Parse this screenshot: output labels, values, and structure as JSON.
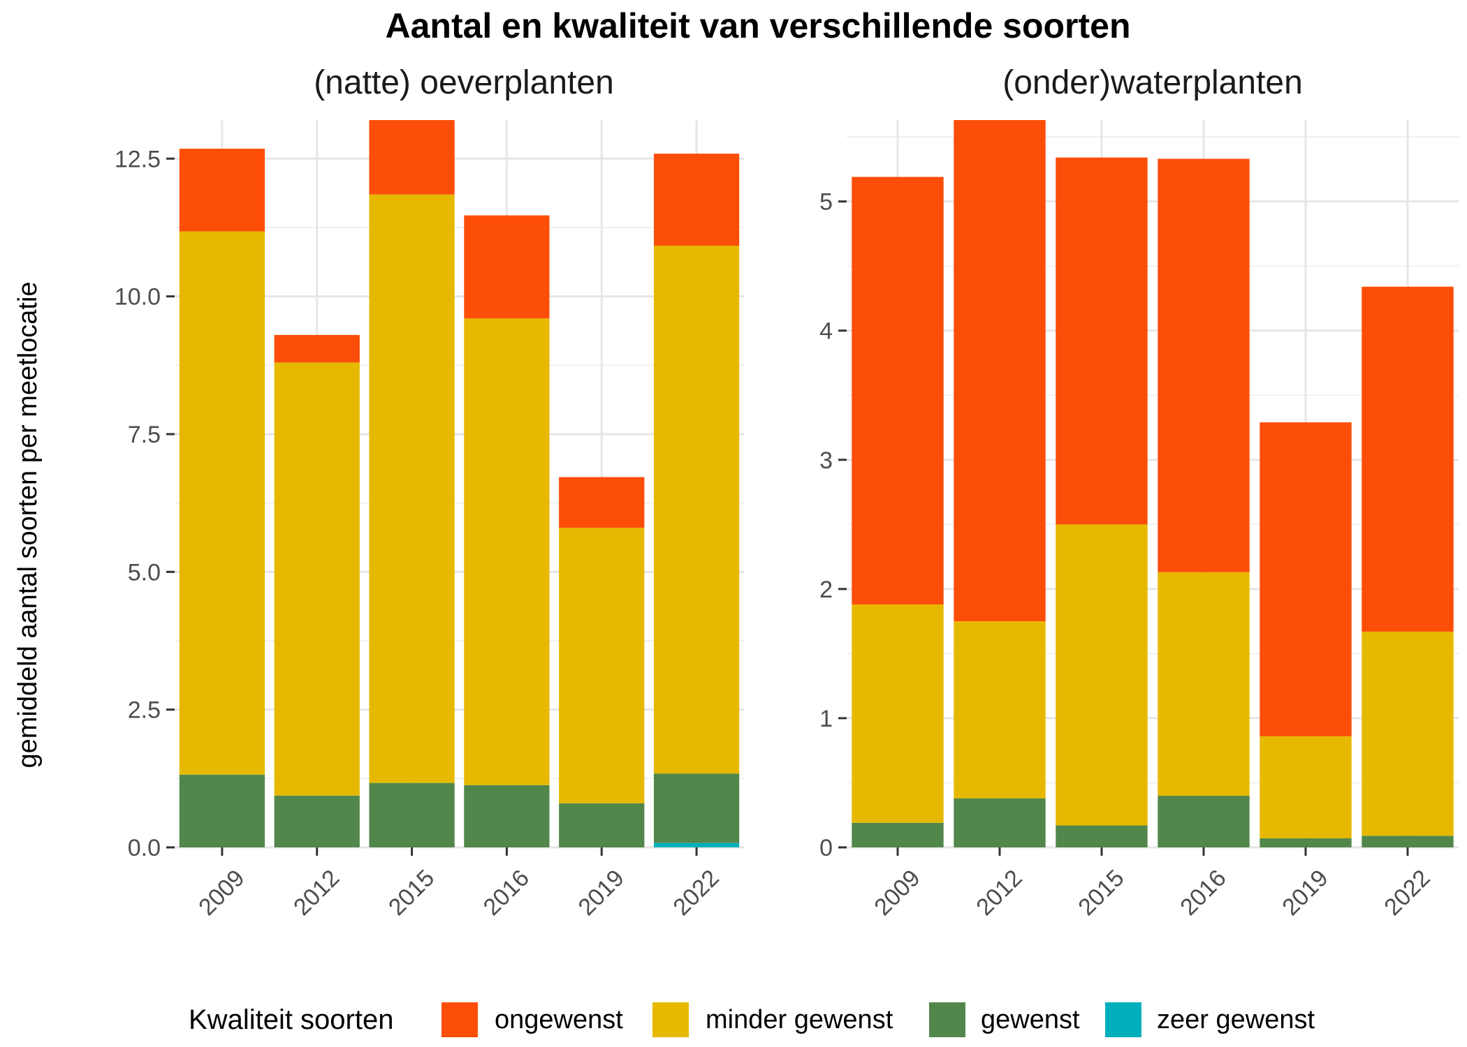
{
  "title": "Aantal en kwaliteit van verschillende soorten",
  "ylabel": "gemiddeld aantal soorten per meetlocatie",
  "legend": {
    "title": "Kwaliteit soorten",
    "position": "bottom",
    "items": [
      {
        "label": "ongewenst",
        "color": "#FC4E08"
      },
      {
        "label": "minder gewenst",
        "color": "#E6B900"
      },
      {
        "label": "gewenst",
        "color": "#52874B"
      },
      {
        "label": "zeer gewenst",
        "color": "#00AFBB"
      }
    ]
  },
  "chart_data": [
    {
      "type": "bar",
      "stacked": true,
      "title": "(natte) oeverplanten",
      "categories": [
        "2009",
        "2012",
        "2015",
        "2016",
        "2019",
        "2022"
      ],
      "ylim": [
        0,
        13.2
      ],
      "yticks": [
        "0.0",
        "2.5",
        "5.0",
        "7.5",
        "10.0",
        "12.5"
      ],
      "grid": true,
      "series": [
        {
          "name": "zeer gewenst",
          "values": [
            0,
            0,
            0,
            0,
            0,
            0.08
          ]
        },
        {
          "name": "gewenst",
          "values": [
            1.32,
            0.94,
            1.17,
            1.13,
            0.8,
            1.26
          ]
        },
        {
          "name": "minder gewenst",
          "values": [
            9.86,
            7.86,
            10.68,
            8.47,
            5.0,
            9.58
          ]
        },
        {
          "name": "ongewenst",
          "values": [
            1.5,
            0.5,
            1.35,
            1.87,
            0.92,
            1.67
          ]
        }
      ]
    },
    {
      "type": "bar",
      "stacked": true,
      "title": "(onder)waterplanten",
      "categories": [
        "2009",
        "2012",
        "2015",
        "2016",
        "2019",
        "2022"
      ],
      "ylim": [
        0,
        5.63
      ],
      "yticks": [
        "0",
        "1",
        "2",
        "3",
        "4",
        "5"
      ],
      "grid": true,
      "series": [
        {
          "name": "zeer gewenst",
          "values": [
            0,
            0,
            0,
            0,
            0,
            0
          ]
        },
        {
          "name": "gewenst",
          "values": [
            0.19,
            0.38,
            0.17,
            0.4,
            0.07,
            0.09
          ]
        },
        {
          "name": "minder gewenst",
          "values": [
            1.69,
            1.37,
            2.33,
            1.73,
            0.79,
            1.58
          ]
        },
        {
          "name": "ongewenst",
          "values": [
            3.31,
            3.88,
            2.84,
            3.2,
            2.43,
            2.67
          ]
        }
      ]
    }
  ]
}
